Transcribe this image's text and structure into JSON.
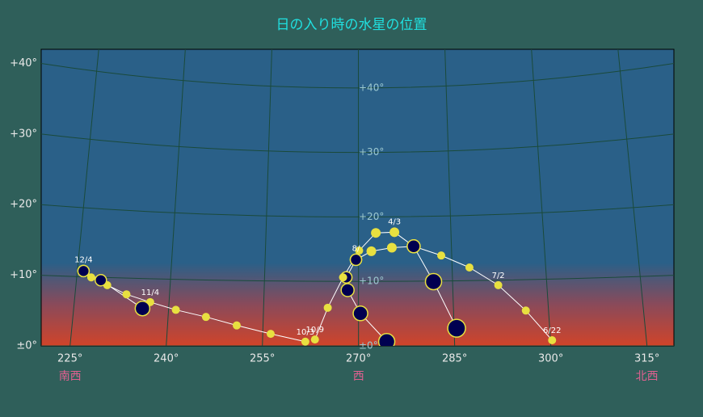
{
  "chart_data": {
    "type": "scatter",
    "title": "日の入り時の水星の位置",
    "xlim": [
      220.5,
      319.2
    ],
    "ylim": [
      0,
      42
    ],
    "y2lim": [
      0,
      46
    ],
    "xticks": [
      {
        "value": 225,
        "label": "225°"
      },
      {
        "value": 240,
        "label": "240°"
      },
      {
        "value": 255,
        "label": "255°"
      },
      {
        "value": 270,
        "label": "270°"
      },
      {
        "value": 285,
        "label": "285°"
      },
      {
        "value": 300,
        "label": "300°"
      },
      {
        "value": 315,
        "label": "315°"
      }
    ],
    "yticks": [
      {
        "value": 0,
        "label": "±0°"
      },
      {
        "value": 10,
        "label": "+10°"
      },
      {
        "value": 20,
        "label": "+20°"
      },
      {
        "value": 30,
        "label": "+30°"
      },
      {
        "value": 40,
        "label": "+40°"
      }
    ],
    "y2ticks": [
      {
        "value": 0,
        "label": "±0°"
      },
      {
        "value": 10,
        "label": "+10°"
      },
      {
        "value": 20,
        "label": "+20°"
      },
      {
        "value": 30,
        "label": "+30°"
      },
      {
        "value": 40,
        "label": "+40°"
      }
    ],
    "direction_labels": [
      {
        "value": 225,
        "label": "南西"
      },
      {
        "value": 270,
        "label": "西"
      },
      {
        "value": 315,
        "label": "北西"
      }
    ],
    "grid": true,
    "line_color": "#ffffff",
    "marker_color": "#e8e040",
    "marker_dark_color": "#000050",
    "series": [
      {
        "x": [
          269.6,
          272.0,
          275.2,
          278.6,
          282.9,
          287.3,
          291.8,
          296.1,
          300.2
        ],
        "y": [
          12.2,
          13.4,
          13.9,
          14.1,
          12.8,
          11.1,
          8.6,
          5.0,
          0.8
        ],
        "sizes": [
          7,
          6,
          6,
          8,
          5,
          5,
          5,
          5,
          5
        ],
        "labels": [
          null,
          null,
          null,
          null,
          null,
          null,
          "7/2",
          null,
          "6/22"
        ]
      },
      {
        "x": [
          267.6,
          270.1,
          272.7,
          275.6,
          278.6,
          281.7,
          285.3
        ],
        "y": [
          9.7,
          13.5,
          16.0,
          16.1,
          14.1,
          9.1,
          2.5
        ],
        "sizes": [
          5,
          5,
          6,
          6,
          8,
          10,
          11
        ],
        "labels": [
          null,
          null,
          null,
          "4/3",
          null,
          null,
          null
        ]
      },
      {
        "x": [
          274.4,
          270.3,
          268.3,
          268.1,
          269.6
        ],
        "y": [
          0.6,
          4.6,
          7.9,
          9.7,
          12.2
        ],
        "sizes": [
          10,
          9,
          8,
          7,
          7
        ],
        "labels": [
          null,
          null,
          null,
          null,
          "8/"
        ]
      },
      {
        "x": [
          263.2,
          265.2,
          267.6
        ],
        "y": [
          0.9,
          5.4,
          9.7
        ],
        "sizes": [
          5,
          5,
          5
        ],
        "labels": [
          "10/9",
          null,
          null
        ]
      },
      {
        "x": [
          261.7,
          256.3,
          251.0,
          246.2,
          241.5,
          237.5,
          233.8,
          230.8,
          228.3,
          227.1
        ],
        "y": [
          0.6,
          1.7,
          2.9,
          4.1,
          5.1,
          6.2,
          7.3,
          8.6,
          9.7,
          10.6
        ],
        "sizes": [
          5,
          5,
          5,
          5,
          5,
          5,
          5,
          5,
          5,
          7
        ],
        "labels": [
          "10/3",
          null,
          null,
          null,
          null,
          "11/4",
          null,
          null,
          null,
          "12/4"
        ]
      },
      {
        "x": [
          227.1,
          229.8,
          236.3
        ],
        "y": [
          10.6,
          9.3,
          5.3
        ],
        "sizes": [
          7,
          7,
          9
        ],
        "labels": [
          null,
          null,
          null
        ]
      }
    ]
  }
}
